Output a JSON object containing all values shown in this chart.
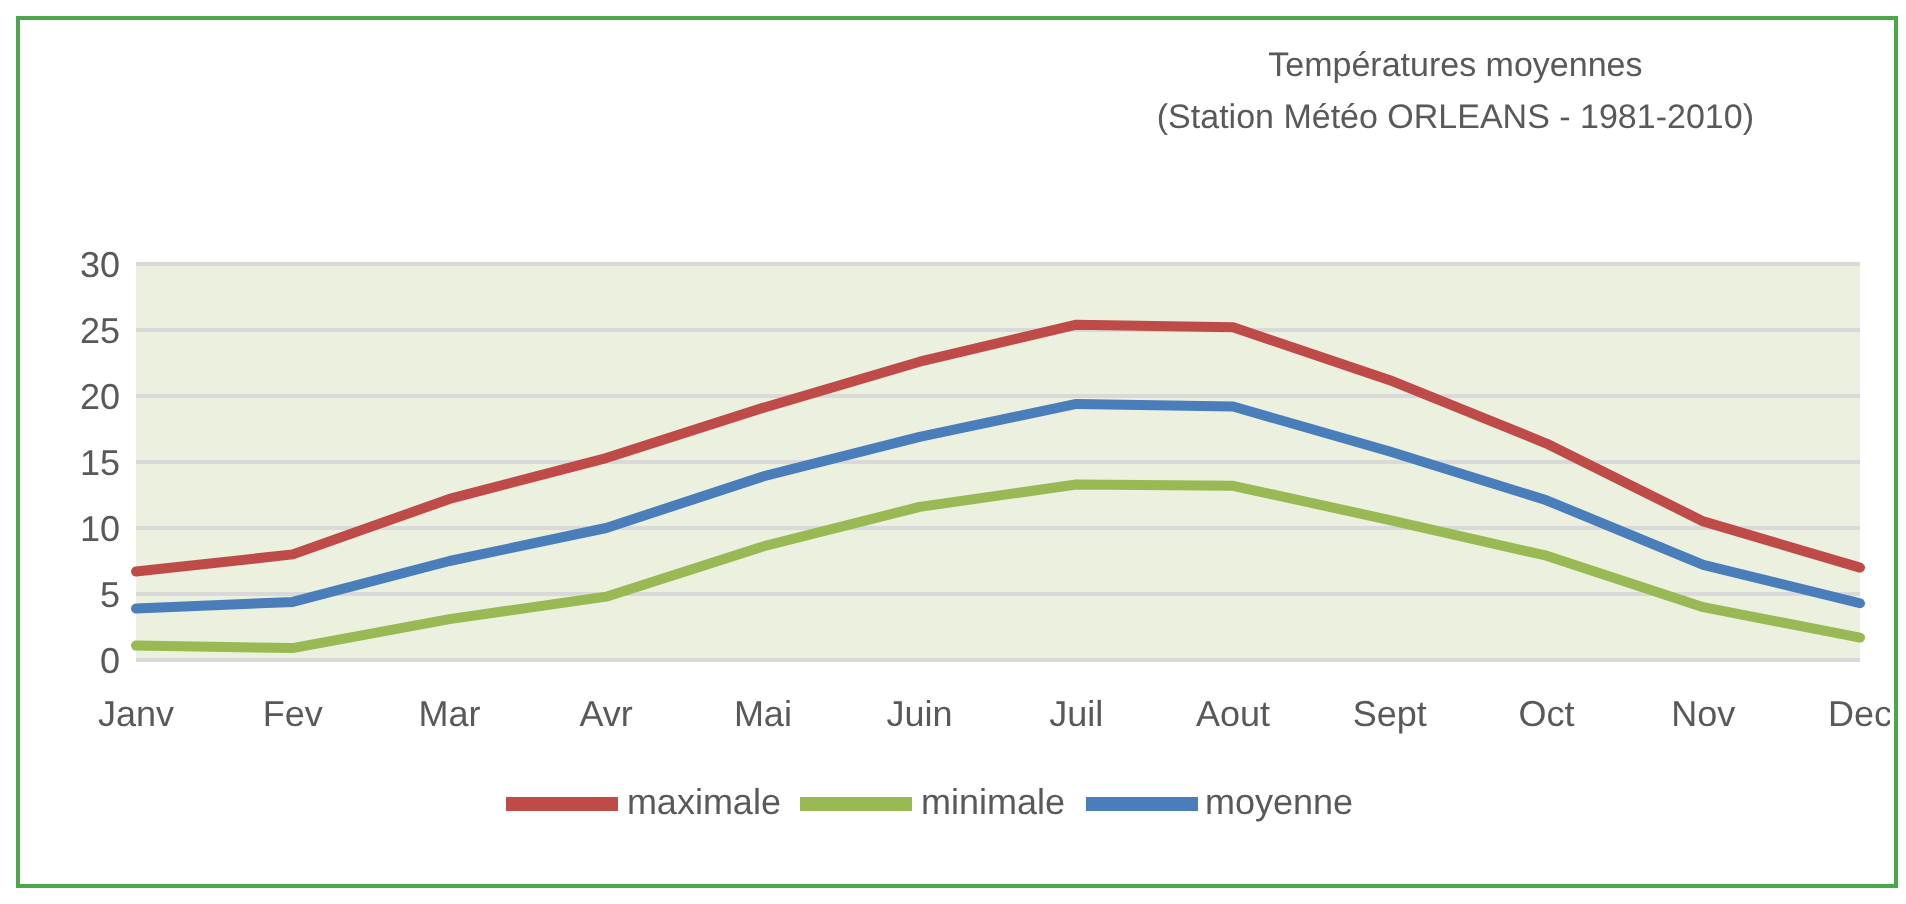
{
  "chart_data": {
    "type": "line",
    "title": "Températures moyennes",
    "subtitle": "(Station Météo ORLEANS - 1981-2010)",
    "categories": [
      "Janv",
      "Fev",
      "Mar",
      "Avr",
      "Mai",
      "Juin",
      "Juil",
      "Aout",
      "Sept",
      "Oct",
      "Nov",
      "Dec"
    ],
    "series": [
      {
        "name": "moyenne",
        "color": "#4a7ebb",
        "values": [
          3.9,
          4.4,
          7.5,
          10,
          13.9,
          16.9,
          19.4,
          19.2,
          15.8,
          12.1,
          7.2,
          4.3
        ]
      },
      {
        "name": "maximale",
        "color": "#be4b48",
        "values": [
          6.7,
          8,
          12.2,
          15.3,
          19.1,
          22.6,
          25.4,
          25.2,
          21.2,
          16.4,
          10.5,
          7
        ]
      },
      {
        "name": "minimale",
        "color": "#98b954",
        "values": [
          1.1,
          0.9,
          3.1,
          4.8,
          8.6,
          11.6,
          13.3,
          13.2,
          10.6,
          7.9,
          4,
          1.7
        ]
      }
    ],
    "ylim": [
      0,
      30
    ],
    "yticks": [
      0,
      5,
      10,
      15,
      20,
      25,
      30
    ],
    "grid": "y",
    "legend": "bottom",
    "marker": "none",
    "line_style": "solid"
  }
}
